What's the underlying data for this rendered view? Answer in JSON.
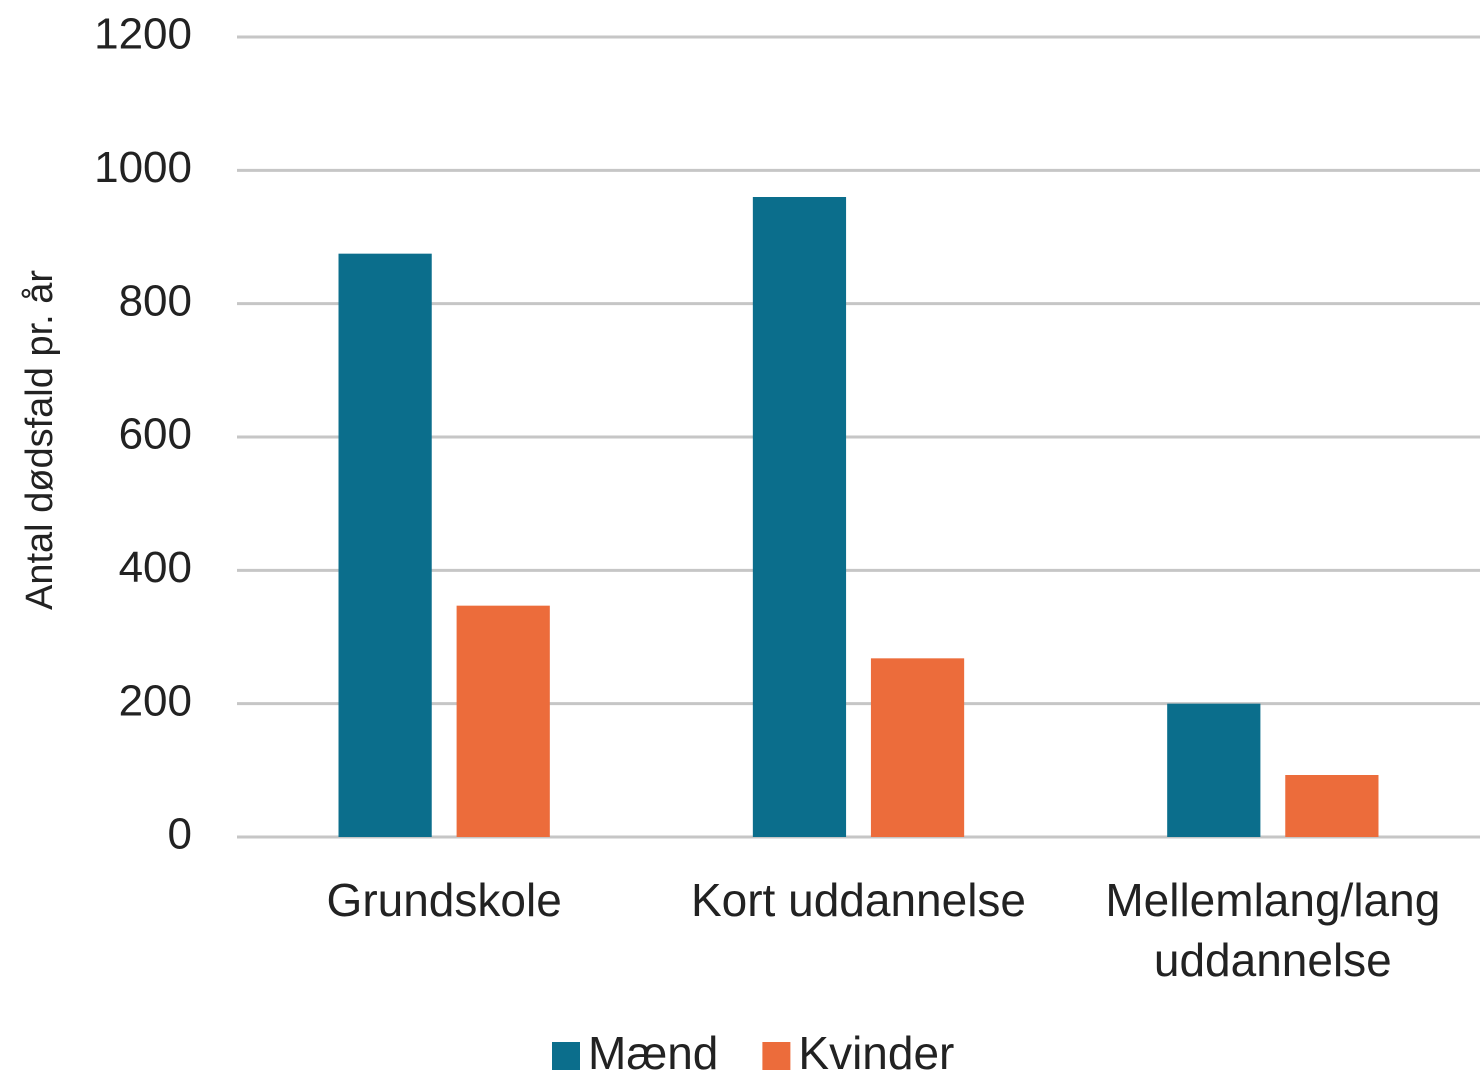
{
  "chart_data": {
    "type": "bar",
    "y_label": "Antal dødsfald pr. år",
    "categories": [
      "Grundskole",
      "Kort uddannelse",
      "Mellemlang/lang uddannelse"
    ],
    "series": [
      {
        "name": "Mænd",
        "color": "#0b6e8c",
        "values": [
          875,
          960,
          200
        ]
      },
      {
        "name": "Kvinder",
        "color": "#ec6c3b",
        "values": [
          347,
          268,
          93
        ]
      }
    ],
    "ylim": [
      0,
      1200
    ],
    "yticks": [
      0,
      200,
      400,
      600,
      800,
      1000,
      1200
    ],
    "grid": true,
    "legend": "bottom"
  }
}
